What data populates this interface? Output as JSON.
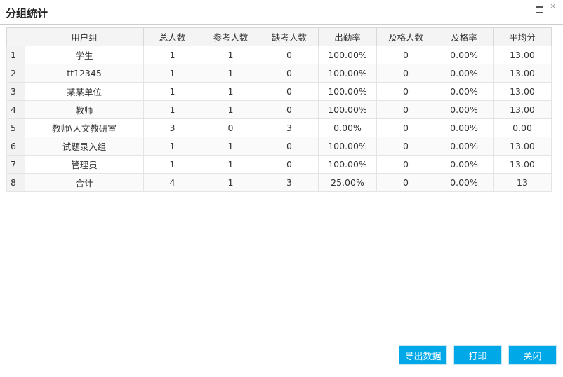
{
  "window": {
    "title": "分组统计"
  },
  "table": {
    "headers": [
      "",
      "用户组",
      "总人数",
      "参考人数",
      "缺考人数",
      "出勤率",
      "及格人数",
      "及格率",
      "平均分"
    ],
    "rows": [
      [
        "1",
        "学生",
        "1",
        "1",
        "0",
        "100.00%",
        "0",
        "0.00%",
        "13.00"
      ],
      [
        "2",
        "tt12345",
        "1",
        "1",
        "0",
        "100.00%",
        "0",
        "0.00%",
        "13.00"
      ],
      [
        "3",
        "某某单位",
        "1",
        "1",
        "0",
        "100.00%",
        "0",
        "0.00%",
        "13.00"
      ],
      [
        "4",
        "教师",
        "1",
        "1",
        "0",
        "100.00%",
        "0",
        "0.00%",
        "13.00"
      ],
      [
        "5",
        "教师\\人文教研室",
        "3",
        "0",
        "3",
        "0.00%",
        "0",
        "0.00%",
        "0.00"
      ],
      [
        "6",
        "试题录入组",
        "1",
        "1",
        "0",
        "100.00%",
        "0",
        "0.00%",
        "13.00"
      ],
      [
        "7",
        "管理员",
        "1",
        "1",
        "0",
        "100.00%",
        "0",
        "0.00%",
        "13.00"
      ],
      [
        "8",
        "合计",
        "4",
        "1",
        "3",
        "25.00%",
        "0",
        "0.00%",
        "13"
      ]
    ]
  },
  "buttons": {
    "export": "导出数据",
    "print": "打印",
    "close": "关闭"
  }
}
